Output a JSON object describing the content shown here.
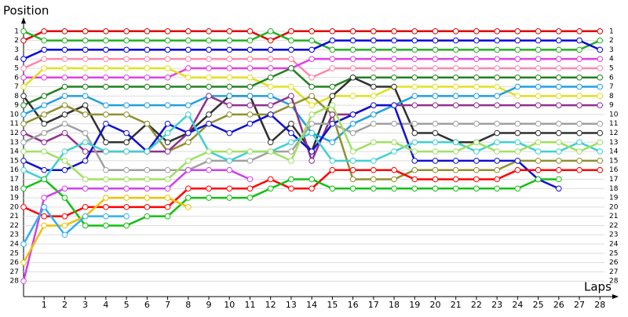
{
  "chart_data": {
    "type": "line",
    "y_label": "Position",
    "x_label": "Laps",
    "x": [
      0,
      1,
      2,
      3,
      4,
      5,
      6,
      7,
      8,
      9,
      10,
      11,
      12,
      13,
      14,
      15,
      16,
      17,
      18,
      19,
      20,
      21,
      22,
      23,
      24,
      25,
      26,
      27,
      28
    ],
    "xlim": [
      0,
      28.6
    ],
    "xticks": [
      1,
      2,
      3,
      4,
      5,
      6,
      7,
      8,
      9,
      10,
      11,
      12,
      13,
      14,
      15,
      16,
      17,
      18,
      19,
      20,
      21,
      22,
      23,
      24,
      25,
      26,
      27,
      28
    ],
    "ylim": [
      29,
      0
    ],
    "yticks": [
      1,
      2,
      3,
      4,
      5,
      6,
      7,
      8,
      9,
      10,
      11,
      12,
      13,
      14,
      15,
      16,
      17,
      18,
      19,
      20,
      21,
      22,
      23,
      24,
      25,
      26,
      27,
      28
    ],
    "grid": true,
    "marker_color": "#ffffff",
    "series": [
      {
        "color": "#e00000",
        "values": [
          2,
          1,
          1,
          1,
          1,
          1,
          1,
          1,
          1,
          1,
          1,
          1,
          2,
          1,
          1,
          1,
          1,
          1,
          1,
          1,
          1,
          1,
          1,
          1,
          1,
          1,
          1,
          1,
          1
        ]
      },
      {
        "color": "#20b020",
        "values": [
          1,
          2,
          2,
          2,
          2,
          2,
          2,
          2,
          2,
          2,
          2,
          2,
          1,
          2,
          2,
          3,
          3,
          3,
          3,
          3,
          3,
          3,
          3,
          3,
          3,
          3,
          3,
          3,
          2
        ]
      },
      {
        "color": "#0000e0",
        "values": [
          4,
          3,
          3,
          3,
          3,
          3,
          3,
          3,
          3,
          3,
          3,
          3,
          3,
          3,
          3,
          2,
          2,
          2,
          2,
          2,
          2,
          2,
          2,
          2,
          2,
          2,
          2,
          2,
          3
        ]
      },
      {
        "color": "#ff88aa",
        "values": [
          5,
          4,
          4,
          4,
          4,
          4,
          4,
          4,
          4,
          4,
          4,
          4,
          4,
          4,
          6,
          5,
          5,
          5,
          5,
          5,
          5,
          5,
          5,
          5,
          5,
          5,
          5,
          5,
          5
        ]
      },
      {
        "color": "#e040e0",
        "values": [
          6,
          6,
          6,
          6,
          6,
          6,
          6,
          6,
          5,
          5,
          5,
          5,
          5,
          5,
          4,
          4,
          4,
          4,
          4,
          4,
          4,
          4,
          4,
          4,
          4,
          4,
          4,
          4,
          4
        ]
      },
      {
        "color": "#e0e020",
        "values": [
          7,
          5,
          5,
          5,
          5,
          5,
          5,
          5,
          6,
          6,
          6,
          6,
          7,
          7,
          9,
          8,
          8,
          8,
          7,
          7,
          7,
          7,
          7,
          7,
          8,
          8,
          8,
          8,
          8
        ]
      },
      {
        "color": "#208020",
        "values": [
          9,
          8,
          7,
          7,
          7,
          7,
          7,
          7,
          7,
          7,
          7,
          7,
          6,
          5,
          7,
          7,
          6,
          6,
          6,
          6,
          6,
          6,
          6,
          6,
          6,
          6,
          6,
          6,
          6
        ]
      },
      {
        "color": "#303030",
        "values": [
          8,
          11,
          10,
          9,
          13,
          13,
          11,
          13,
          12,
          10,
          8,
          8,
          13,
          11,
          14,
          8,
          6,
          7,
          7,
          12,
          12,
          13,
          13,
          12,
          12,
          12,
          12,
          12,
          12
        ]
      },
      {
        "color": "#20a0e0",
        "values": [
          10,
          9,
          8,
          8,
          9,
          9,
          9,
          9,
          9,
          8,
          8,
          8,
          8,
          9,
          12,
          13,
          11,
          10,
          9,
          8,
          8,
          8,
          8,
          8,
          7,
          7,
          7,
          7,
          7
        ]
      },
      {
        "color": "#909030",
        "values": [
          11,
          10,
          9,
          10,
          10,
          10,
          11,
          14,
          13,
          11,
          10,
          10,
          10,
          9,
          8,
          10,
          17,
          17,
          17,
          16,
          16,
          16,
          16,
          16,
          15,
          15,
          15,
          15,
          15
        ]
      },
      {
        "color": "#903090",
        "values": [
          12,
          13,
          12,
          14,
          14,
          14,
          14,
          14,
          12,
          8,
          9,
          9,
          9,
          8,
          15,
          10,
          10,
          9,
          9,
          9,
          9,
          9,
          9,
          9,
          9,
          9,
          9,
          9,
          9
        ]
      },
      {
        "color": "#a0a0a0",
        "values": [
          13,
          12,
          11,
          12,
          16,
          16,
          16,
          16,
          16,
          15,
          15,
          15,
          14,
          14,
          11,
          11,
          12,
          11,
          11,
          11,
          11,
          11,
          11,
          11,
          11,
          11,
          11,
          11,
          11
        ]
      },
      {
        "color": "#1010d0",
        "values": [
          15,
          16,
          16,
          15,
          11,
          12,
          14,
          11,
          12,
          11,
          12,
          11,
          10,
          12,
          14,
          11,
          10,
          9,
          9,
          15,
          15,
          15,
          15,
          15,
          15,
          17,
          18,
          null,
          null
        ]
      },
      {
        "color": "#40d0d0",
        "values": [
          16,
          17,
          14,
          13,
          14,
          14,
          14,
          12,
          10,
          14,
          15,
          14,
          14,
          13,
          12,
          15,
          15,
          15,
          14,
          13,
          13,
          13,
          14,
          13,
          13,
          14,
          14,
          13,
          14
        ]
      },
      {
        "color": "#a0e060",
        "values": [
          14,
          14,
          15,
          17,
          17,
          17,
          17,
          17,
          15,
          14,
          14,
          14,
          14,
          15,
          10,
          9,
          14,
          13,
          13,
          14,
          14,
          14,
          13,
          14,
          14,
          13,
          13,
          14,
          13
        ]
      },
      {
        "color": "#ff0000",
        "values": [
          20,
          21,
          21,
          20,
          20,
          20,
          20,
          20,
          18,
          18,
          18,
          18,
          17,
          18,
          18,
          16,
          16,
          16,
          16,
          17,
          17,
          17,
          17,
          17,
          16,
          16,
          16,
          16,
          16
        ]
      },
      {
        "color": "#10c010",
        "values": [
          18,
          17,
          19,
          22,
          22,
          22,
          21,
          21,
          19,
          19,
          19,
          19,
          18,
          17,
          17,
          18,
          18,
          18,
          18,
          18,
          18,
          18,
          18,
          18,
          18,
          17,
          17,
          null,
          null
        ]
      },
      {
        "color": "#d040f0",
        "values": [
          28,
          19,
          18,
          18,
          18,
          18,
          18,
          18,
          16,
          16,
          16,
          17,
          null,
          null,
          null,
          null,
          null,
          null,
          null,
          null,
          null,
          null,
          null,
          null,
          null,
          null,
          null,
          null,
          null
        ]
      },
      {
        "color": "#f0c000",
        "values": [
          26,
          22,
          22,
          21,
          19,
          19,
          19,
          19,
          20,
          null,
          null,
          null,
          null,
          null,
          null,
          null,
          null,
          null,
          null,
          null,
          null,
          null,
          null,
          null,
          null,
          null,
          null,
          null,
          null
        ]
      },
      {
        "color": "#30b0f0",
        "values": [
          24,
          20,
          23,
          21,
          21,
          21,
          null,
          null,
          null,
          null,
          null,
          null,
          null,
          null,
          null,
          null,
          null,
          null,
          null,
          null,
          null,
          null,
          null,
          null,
          null,
          null,
          null,
          null,
          null
        ]
      }
    ]
  }
}
